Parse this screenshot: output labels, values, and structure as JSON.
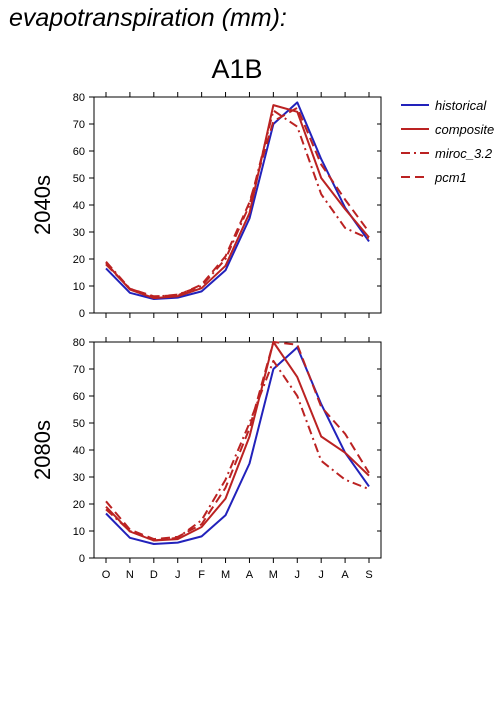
{
  "page": {
    "title": "evapotranspiration (mm):",
    "scenario": "A1B"
  },
  "chart_data": [
    {
      "type": "line",
      "panel_label": "2040s",
      "x": [
        "O",
        "N",
        "D",
        "J",
        "F",
        "M",
        "A",
        "M",
        "J",
        "J",
        "A",
        "S"
      ],
      "ylim": [
        0,
        80
      ],
      "yticks": [
        0,
        10,
        20,
        30,
        40,
        50,
        60,
        70,
        80
      ],
      "series": [
        {
          "name": "historical",
          "color": "#2222bb",
          "dash": "solid",
          "values": [
            16.5,
            7.5,
            5.2,
            5.7,
            8.0,
            15.8,
            35.0,
            70.0,
            78.0,
            57.0,
            39.0,
            26.5
          ]
        },
        {
          "name": "composite",
          "color": "#bb2222",
          "dash": "solid",
          "values": [
            18.5,
            8.7,
            5.5,
            6.2,
            9.2,
            17.5,
            37.0,
            77.0,
            74.5,
            50.0,
            38.5,
            28.0
          ]
        },
        {
          "name": "miroc_3.2",
          "color": "#bb2222",
          "dash": "dashdot",
          "values": [
            19.0,
            9.0,
            6.0,
            6.8,
            10.0,
            20.0,
            40.0,
            75.0,
            69.0,
            44.0,
            31.5,
            27.5
          ]
        },
        {
          "name": "pcm1",
          "color": "#bb2222",
          "dash": "dash",
          "values": [
            18.0,
            9.0,
            6.2,
            6.5,
            10.5,
            21.0,
            41.0,
            71.0,
            76.0,
            55.0,
            42.0,
            30.0
          ]
        }
      ]
    },
    {
      "type": "line",
      "panel_label": "2080s",
      "x": [
        "O",
        "N",
        "D",
        "J",
        "F",
        "M",
        "A",
        "M",
        "J",
        "J",
        "A",
        "S"
      ],
      "ylim": [
        0,
        80
      ],
      "yticks": [
        0,
        10,
        20,
        30,
        40,
        50,
        60,
        70,
        80
      ],
      "series": [
        {
          "name": "historical",
          "color": "#2222bb",
          "dash": "solid",
          "values": [
            16.5,
            7.5,
            5.2,
            5.7,
            8.0,
            15.8,
            35.0,
            70.0,
            78.0,
            57.0,
            39.0,
            26.5
          ]
        },
        {
          "name": "composite",
          "color": "#bb2222",
          "dash": "solid",
          "values": [
            19.0,
            9.8,
            6.5,
            7.0,
            11.5,
            22.0,
            45.0,
            80.0,
            67.0,
            45.0,
            39.0,
            30.5
          ]
        },
        {
          "name": "miroc_3.2",
          "color": "#bb2222",
          "dash": "dashdot",
          "values": [
            18.0,
            10.0,
            6.5,
            7.5,
            14.0,
            29.0,
            50.0,
            73.0,
            60.0,
            36.0,
            29.0,
            25.5
          ]
        },
        {
          "name": "pcm1",
          "color": "#bb2222",
          "dash": "dash",
          "values": [
            21.0,
            10.5,
            7.0,
            7.8,
            12.5,
            26.0,
            48.0,
            80.0,
            79.0,
            56.0,
            46.0,
            31.5
          ]
        }
      ]
    }
  ],
  "legend": {
    "placement": "right",
    "items": [
      {
        "label": "historical",
        "color": "#2222bb",
        "dash": "solid"
      },
      {
        "label": "composite",
        "color": "#bb2222",
        "dash": "solid"
      },
      {
        "label": "miroc_3.2",
        "color": "#bb2222",
        "dash": "dashdot"
      },
      {
        "label": "pcm1",
        "color": "#bb2222",
        "dash": "dash"
      }
    ]
  }
}
